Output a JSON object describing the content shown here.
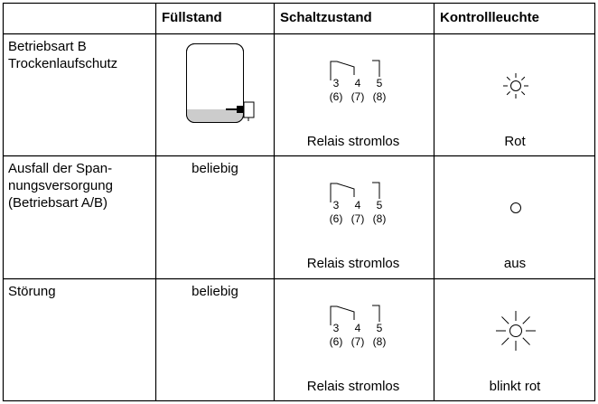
{
  "table": {
    "header": [
      "Füllstand",
      "Schaltzustand",
      "Kontrollleuchte"
    ],
    "rows": [
      {
        "mode": [
          "Betriebsart B",
          "Trockenlaufschutz"
        ],
        "relay": {
          "terminals": [
            "3",
            "4",
            "5"
          ],
          "alt_terminals": [
            "(6)",
            "(7)",
            "(8)"
          ],
          "state": "Relais stromlos"
        },
        "lamp": "Rot"
      },
      {
        "mode": [
          "Ausfall der Span-",
          "nungsversorgung",
          "(Betriebsart A/B)"
        ],
        "fill_level": "beliebig",
        "relay": {
          "terminals": [
            "3",
            "4",
            "5"
          ],
          "alt_terminals": [
            "(6)",
            "(7)",
            "(8)"
          ],
          "state": "Relais stromlos"
        },
        "lamp": "aus"
      },
      {
        "mode": [
          "Störung"
        ],
        "fill_level": "beliebig",
        "relay": {
          "terminals": [
            "3",
            "4",
            "5"
          ],
          "alt_terminals": [
            "(6)",
            "(7)",
            "(8)"
          ],
          "state": "Relais stromlos"
        },
        "lamp": "blinkt rot"
      }
    ]
  }
}
